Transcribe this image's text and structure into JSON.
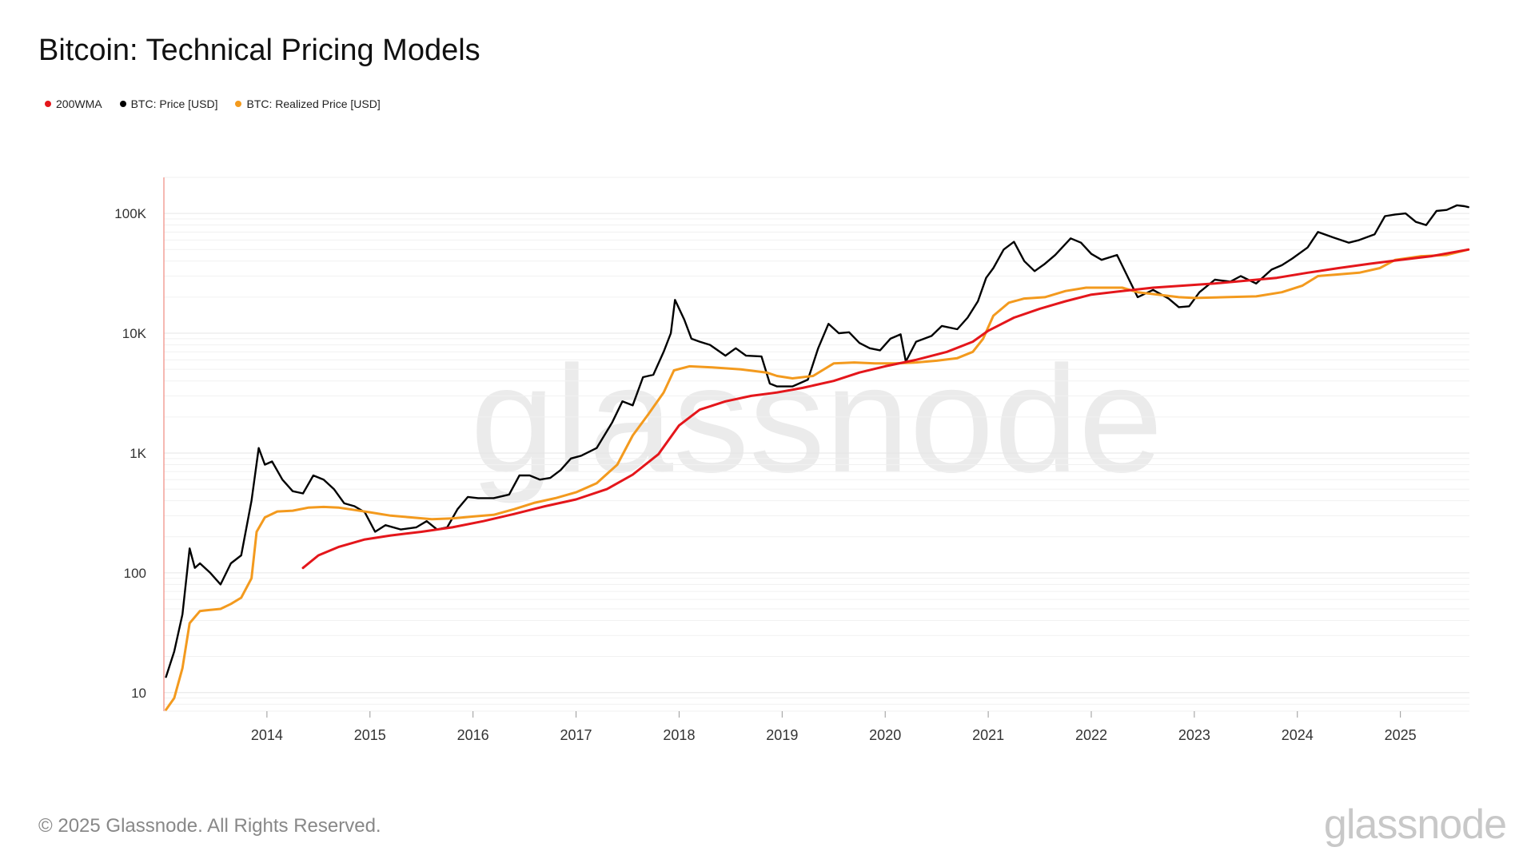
{
  "header": {
    "title": "Bitcoin: Technical Pricing Models"
  },
  "legend": [
    {
      "label": "200WMA",
      "color": "#e4161b"
    },
    {
      "label": "BTC: Price [USD]",
      "color": "#000000"
    },
    {
      "label": "BTC: Realized Price [USD]",
      "color": "#f39a1e"
    }
  ],
  "watermark": "glassnode",
  "footer": {
    "copyright": "© 2025 Glassnode. All Rights Reserved.",
    "logo": "glassnode"
  },
  "chart_data": {
    "type": "line",
    "title": "Bitcoin: Technical Pricing Models",
    "xlabel": "",
    "ylabel": "",
    "yscale": "log",
    "ylim": [
      7,
      200000
    ],
    "xlim": [
      2013.0,
      2025.67
    ],
    "y_ticks": [
      {
        "value": 10,
        "label": "10"
      },
      {
        "value": 100,
        "label": "100"
      },
      {
        "value": 1000,
        "label": "1K"
      },
      {
        "value": 10000,
        "label": "10K"
      },
      {
        "value": 100000,
        "label": "100K"
      }
    ],
    "x_ticks": [
      {
        "value": 2014,
        "label": "2014"
      },
      {
        "value": 2015,
        "label": "2015"
      },
      {
        "value": 2016,
        "label": "2016"
      },
      {
        "value": 2017,
        "label": "2017"
      },
      {
        "value": 2018,
        "label": "2018"
      },
      {
        "value": 2019,
        "label": "2019"
      },
      {
        "value": 2020,
        "label": "2020"
      },
      {
        "value": 2021,
        "label": "2021"
      },
      {
        "value": 2022,
        "label": "2022"
      },
      {
        "value": 2023,
        "label": "2023"
      },
      {
        "value": 2024,
        "label": "2024"
      },
      {
        "value": 2025,
        "label": "2025"
      }
    ],
    "grid": true,
    "legend_position": "top-left",
    "series": [
      {
        "name": "BTC: Price [USD]",
        "color": "#000000",
        "points": [
          [
            2013.02,
            13.5
          ],
          [
            2013.1,
            22
          ],
          [
            2013.18,
            45
          ],
          [
            2013.25,
            160
          ],
          [
            2013.3,
            110
          ],
          [
            2013.35,
            120
          ],
          [
            2013.45,
            100
          ],
          [
            2013.55,
            80
          ],
          [
            2013.65,
            120
          ],
          [
            2013.75,
            140
          ],
          [
            2013.85,
            400
          ],
          [
            2013.92,
            1100
          ],
          [
            2013.98,
            800
          ],
          [
            2014.05,
            850
          ],
          [
            2014.15,
            600
          ],
          [
            2014.25,
            480
          ],
          [
            2014.35,
            460
          ],
          [
            2014.45,
            650
          ],
          [
            2014.55,
            600
          ],
          [
            2014.65,
            500
          ],
          [
            2014.75,
            380
          ],
          [
            2014.85,
            360
          ],
          [
            2014.95,
            320
          ],
          [
            2015.05,
            220
          ],
          [
            2015.15,
            250
          ],
          [
            2015.3,
            230
          ],
          [
            2015.45,
            240
          ],
          [
            2015.55,
            270
          ],
          [
            2015.65,
            230
          ],
          [
            2015.75,
            240
          ],
          [
            2015.85,
            340
          ],
          [
            2015.95,
            430
          ],
          [
            2016.05,
            420
          ],
          [
            2016.2,
            420
          ],
          [
            2016.35,
            450
          ],
          [
            2016.45,
            650
          ],
          [
            2016.55,
            650
          ],
          [
            2016.65,
            600
          ],
          [
            2016.75,
            620
          ],
          [
            2016.85,
            720
          ],
          [
            2016.95,
            900
          ],
          [
            2017.05,
            950
          ],
          [
            2017.2,
            1100
          ],
          [
            2017.35,
            1800
          ],
          [
            2017.45,
            2700
          ],
          [
            2017.55,
            2500
          ],
          [
            2017.65,
            4300
          ],
          [
            2017.75,
            4500
          ],
          [
            2017.85,
            7000
          ],
          [
            2017.92,
            10000
          ],
          [
            2017.96,
            19000
          ],
          [
            2018.05,
            13000
          ],
          [
            2018.12,
            9000
          ],
          [
            2018.2,
            8500
          ],
          [
            2018.3,
            8000
          ],
          [
            2018.45,
            6500
          ],
          [
            2018.55,
            7500
          ],
          [
            2018.65,
            6500
          ],
          [
            2018.8,
            6400
          ],
          [
            2018.88,
            3800
          ],
          [
            2018.95,
            3600
          ],
          [
            2019.1,
            3600
          ],
          [
            2019.25,
            4100
          ],
          [
            2019.35,
            7500
          ],
          [
            2019.45,
            12000
          ],
          [
            2019.55,
            10000
          ],
          [
            2019.65,
            10200
          ],
          [
            2019.75,
            8300
          ],
          [
            2019.85,
            7500
          ],
          [
            2019.95,
            7200
          ],
          [
            2020.05,
            9000
          ],
          [
            2020.15,
            9800
          ],
          [
            2020.2,
            5800
          ],
          [
            2020.3,
            8500
          ],
          [
            2020.45,
            9500
          ],
          [
            2020.55,
            11500
          ],
          [
            2020.7,
            10800
          ],
          [
            2020.8,
            13500
          ],
          [
            2020.9,
            18500
          ],
          [
            2020.98,
            29000
          ],
          [
            2021.05,
            35000
          ],
          [
            2021.15,
            50000
          ],
          [
            2021.25,
            58000
          ],
          [
            2021.35,
            40000
          ],
          [
            2021.45,
            33000
          ],
          [
            2021.55,
            38000
          ],
          [
            2021.65,
            45000
          ],
          [
            2021.8,
            62000
          ],
          [
            2021.9,
            57000
          ],
          [
            2022.0,
            46000
          ],
          [
            2022.1,
            41000
          ],
          [
            2022.25,
            45000
          ],
          [
            2022.35,
            30000
          ],
          [
            2022.45,
            20000
          ],
          [
            2022.6,
            23000
          ],
          [
            2022.75,
            19500
          ],
          [
            2022.85,
            16500
          ],
          [
            2022.95,
            16800
          ],
          [
            2023.05,
            22000
          ],
          [
            2023.2,
            28000
          ],
          [
            2023.35,
            27000
          ],
          [
            2023.45,
            30000
          ],
          [
            2023.6,
            26000
          ],
          [
            2023.75,
            34000
          ],
          [
            2023.85,
            37000
          ],
          [
            2023.95,
            42000
          ],
          [
            2024.1,
            52000
          ],
          [
            2024.2,
            70000
          ],
          [
            2024.35,
            63000
          ],
          [
            2024.5,
            57000
          ],
          [
            2024.6,
            60000
          ],
          [
            2024.75,
            67000
          ],
          [
            2024.85,
            95000
          ],
          [
            2024.95,
            98000
          ],
          [
            2025.05,
            100000
          ],
          [
            2025.15,
            85000
          ],
          [
            2025.25,
            80000
          ],
          [
            2025.35,
            105000
          ],
          [
            2025.45,
            107000
          ],
          [
            2025.55,
            117000
          ],
          [
            2025.62,
            115000
          ],
          [
            2025.66,
            113000
          ]
        ]
      },
      {
        "name": "BTC: Realized Price [USD]",
        "color": "#f39a1e",
        "points": [
          [
            2013.02,
            7.2
          ],
          [
            2013.1,
            9
          ],
          [
            2013.18,
            16
          ],
          [
            2013.25,
            38
          ],
          [
            2013.35,
            48
          ],
          [
            2013.45,
            49
          ],
          [
            2013.55,
            50
          ],
          [
            2013.65,
            55
          ],
          [
            2013.75,
            62
          ],
          [
            2013.85,
            90
          ],
          [
            2013.9,
            220
          ],
          [
            2013.98,
            290
          ],
          [
            2014.1,
            325
          ],
          [
            2014.25,
            330
          ],
          [
            2014.4,
            350
          ],
          [
            2014.55,
            355
          ],
          [
            2014.7,
            350
          ],
          [
            2014.85,
            335
          ],
          [
            2015.0,
            320
          ],
          [
            2015.2,
            300
          ],
          [
            2015.4,
            290
          ],
          [
            2015.6,
            280
          ],
          [
            2015.8,
            285
          ],
          [
            2016.0,
            295
          ],
          [
            2016.2,
            305
          ],
          [
            2016.4,
            340
          ],
          [
            2016.6,
            385
          ],
          [
            2016.8,
            420
          ],
          [
            2017.0,
            470
          ],
          [
            2017.2,
            560
          ],
          [
            2017.4,
            800
          ],
          [
            2017.55,
            1400
          ],
          [
            2017.7,
            2100
          ],
          [
            2017.85,
            3200
          ],
          [
            2017.95,
            4900
          ],
          [
            2018.1,
            5300
          ],
          [
            2018.3,
            5200
          ],
          [
            2018.6,
            5000
          ],
          [
            2018.85,
            4700
          ],
          [
            2018.95,
            4400
          ],
          [
            2019.1,
            4200
          ],
          [
            2019.3,
            4400
          ],
          [
            2019.5,
            5600
          ],
          [
            2019.7,
            5700
          ],
          [
            2019.9,
            5600
          ],
          [
            2020.1,
            5600
          ],
          [
            2020.3,
            5700
          ],
          [
            2020.5,
            5900
          ],
          [
            2020.7,
            6200
          ],
          [
            2020.85,
            7000
          ],
          [
            2020.95,
            9000
          ],
          [
            2021.05,
            14000
          ],
          [
            2021.2,
            18000
          ],
          [
            2021.35,
            19500
          ],
          [
            2021.55,
            20000
          ],
          [
            2021.75,
            22500
          ],
          [
            2021.95,
            24000
          ],
          [
            2022.15,
            24000
          ],
          [
            2022.3,
            24000
          ],
          [
            2022.45,
            22000
          ],
          [
            2022.65,
            21000
          ],
          [
            2022.85,
            20000
          ],
          [
            2023.0,
            19700
          ],
          [
            2023.3,
            20000
          ],
          [
            2023.6,
            20300
          ],
          [
            2023.85,
            22000
          ],
          [
            2024.05,
            25000
          ],
          [
            2024.2,
            30000
          ],
          [
            2024.4,
            31000
          ],
          [
            2024.6,
            32000
          ],
          [
            2024.8,
            35000
          ],
          [
            2024.95,
            41000
          ],
          [
            2025.2,
            44000
          ],
          [
            2025.45,
            45000
          ],
          [
            2025.66,
            50000
          ]
        ]
      },
      {
        "name": "200WMA",
        "color": "#e4161b",
        "points": [
          [
            2014.35,
            110
          ],
          [
            2014.5,
            140
          ],
          [
            2014.7,
            165
          ],
          [
            2014.95,
            190
          ],
          [
            2015.2,
            205
          ],
          [
            2015.5,
            220
          ],
          [
            2015.8,
            240
          ],
          [
            2016.1,
            270
          ],
          [
            2016.4,
            310
          ],
          [
            2016.7,
            360
          ],
          [
            2017.0,
            410
          ],
          [
            2017.3,
            500
          ],
          [
            2017.55,
            660
          ],
          [
            2017.8,
            980
          ],
          [
            2018.0,
            1700
          ],
          [
            2018.2,
            2300
          ],
          [
            2018.45,
            2700
          ],
          [
            2018.7,
            3000
          ],
          [
            2018.95,
            3200
          ],
          [
            2019.2,
            3500
          ],
          [
            2019.5,
            4000
          ],
          [
            2019.75,
            4700
          ],
          [
            2020.0,
            5300
          ],
          [
            2020.3,
            6000
          ],
          [
            2020.6,
            7000
          ],
          [
            2020.85,
            8500
          ],
          [
            2021.0,
            10500
          ],
          [
            2021.25,
            13500
          ],
          [
            2021.5,
            16000
          ],
          [
            2021.75,
            18500
          ],
          [
            2022.0,
            21000
          ],
          [
            2022.3,
            22500
          ],
          [
            2022.6,
            24000
          ],
          [
            2022.9,
            25000
          ],
          [
            2023.2,
            26000
          ],
          [
            2023.5,
            27500
          ],
          [
            2023.8,
            29000
          ],
          [
            2024.1,
            32000
          ],
          [
            2024.4,
            35000
          ],
          [
            2024.7,
            38000
          ],
          [
            2025.0,
            41000
          ],
          [
            2025.3,
            44000
          ],
          [
            2025.66,
            50000
          ]
        ]
      }
    ]
  }
}
